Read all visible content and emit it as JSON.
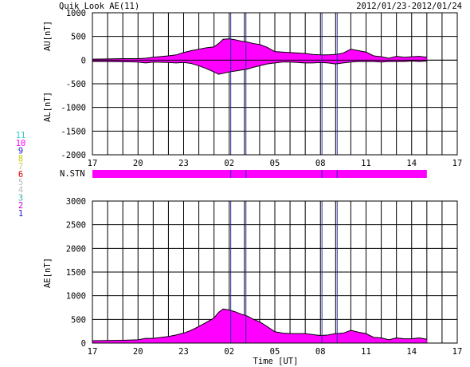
{
  "header": {
    "title": "Quik Look AE(11)",
    "date_range": "2012/01/23-2012/01/24"
  },
  "station_legend": {
    "items": [
      {
        "label": "11",
        "color": "#33cccc"
      },
      {
        "label": "10",
        "color": "#ff00ff"
      },
      {
        "label": "9",
        "color": "#2222cc"
      },
      {
        "label": "8",
        "color": "#cccc00"
      },
      {
        "label": "7",
        "color": "#cccc66"
      },
      {
        "label": "6",
        "color": "#dd0000"
      },
      {
        "label": "5",
        "color": "#bbbbbb"
      },
      {
        "label": "4",
        "color": "#bbbbbb"
      },
      {
        "label": "3",
        "color": "#33aaaa"
      },
      {
        "label": "2",
        "color": "#cc00cc"
      },
      {
        "label": "1",
        "color": "#2222cc"
      }
    ]
  },
  "chart_data": [
    {
      "type": "area",
      "panel": "AU_AL",
      "ylabel_top": "AU[nT]",
      "ylabel_bottom": "AL[nT]",
      "ylim": [
        -2000,
        1000
      ],
      "yticks": [
        1000,
        500,
        0,
        -500,
        -1000,
        -1500,
        -2000
      ],
      "xlim_hours": [
        17,
        41
      ],
      "xtick_labels": [
        "17",
        "20",
        "23",
        "02",
        "05",
        "08",
        "11",
        "14",
        "17"
      ],
      "grid": true,
      "fill_color": "#ff00ff",
      "x_hours": [
        17,
        18,
        19,
        20,
        20.5,
        21,
        22,
        22.5,
        23,
        23.5,
        24,
        24.5,
        25,
        25.3,
        25.6,
        26,
        26.4,
        26.8,
        27.2,
        27.6,
        28,
        28.5,
        29,
        29.5,
        30,
        30.5,
        31,
        31.5,
        32,
        32.5,
        33,
        33.5,
        34,
        34.5,
        35,
        35.5,
        36,
        36.5,
        37,
        37.5,
        38,
        38.5,
        39
      ],
      "au": [
        20,
        25,
        30,
        30,
        40,
        60,
        90,
        110,
        160,
        200,
        230,
        260,
        280,
        350,
        440,
        450,
        430,
        400,
        380,
        350,
        330,
        270,
        180,
        170,
        160,
        150,
        140,
        120,
        110,
        110,
        120,
        150,
        230,
        200,
        170,
        90,
        70,
        40,
        80,
        60,
        70,
        80,
        60
      ],
      "al": [
        -30,
        -30,
        -35,
        -40,
        -60,
        -40,
        -50,
        -60,
        -50,
        -70,
        -120,
        -180,
        -250,
        -300,
        -280,
        -250,
        -230,
        -210,
        -190,
        -150,
        -120,
        -80,
        -60,
        -40,
        -40,
        -50,
        -60,
        -60,
        -50,
        -60,
        -80,
        -60,
        -40,
        -30,
        -30,
        -30,
        -40,
        -30,
        -30,
        -30,
        -20,
        -30,
        -20
      ],
      "event_lines_hours": [
        26.1,
        27.1,
        32.1,
        33.1
      ]
    },
    {
      "type": "area",
      "panel": "AE",
      "ylabel": "AE[nT]",
      "xlabel": "Time [UT]",
      "ylim": [
        0,
        3000
      ],
      "yticks": [
        3000,
        2500,
        2000,
        1500,
        1000,
        500,
        0
      ],
      "xlim_hours": [
        17,
        41
      ],
      "xtick_labels": [
        "17",
        "20",
        "23",
        "02",
        "05",
        "08",
        "11",
        "14",
        "17"
      ],
      "grid": true,
      "fill_color": "#ff00ff",
      "x_hours": [
        17,
        18,
        19,
        20,
        20.5,
        21,
        22,
        22.5,
        23,
        23.5,
        24,
        24.5,
        25,
        25.3,
        25.6,
        26,
        26.4,
        26.8,
        27.2,
        27.6,
        28,
        28.5,
        29,
        29.5,
        30,
        30.5,
        31,
        31.5,
        32,
        32.5,
        33,
        33.5,
        34,
        34.5,
        35,
        35.5,
        36,
        36.5,
        37,
        37.5,
        38,
        38.5,
        39
      ],
      "ae": [
        50,
        55,
        60,
        70,
        100,
        100,
        140,
        170,
        210,
        270,
        350,
        440,
        530,
        650,
        720,
        700,
        660,
        610,
        570,
        500,
        450,
        350,
        240,
        210,
        200,
        200,
        200,
        180,
        160,
        170,
        200,
        210,
        270,
        230,
        200,
        120,
        110,
        70,
        110,
        90,
        90,
        110,
        80
      ],
      "event_lines_hours": [
        26.1,
        27.1,
        32.1,
        33.1
      ]
    }
  ],
  "station_bar": {
    "label": "N.STN",
    "color": "#ff00ff",
    "x_start_hours": 17,
    "x_end_hours": 39
  }
}
